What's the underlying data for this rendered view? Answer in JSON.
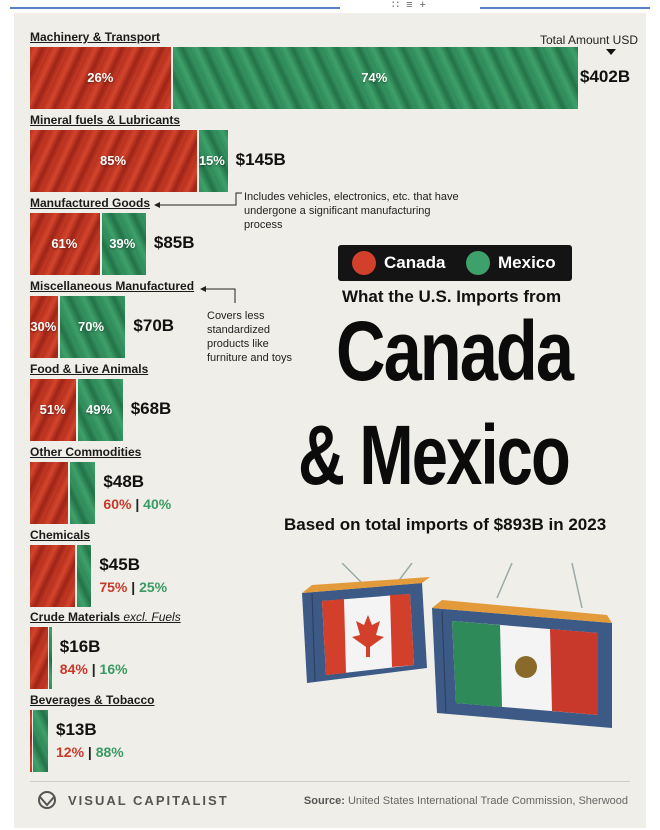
{
  "chart_data": {
    "type": "bar",
    "title": "What the U.S. Imports from Canada & Mexico",
    "title_lead": "What the U.S. Imports from",
    "title_line1": "Canada",
    "title_line2": "& Mexico",
    "subtitle": "Based on total imports of $893B in 2023",
    "total_label": "Total Amount USD",
    "legend": [
      {
        "name": "Canada",
        "color": "#d2402c"
      },
      {
        "name": "Mexico",
        "color": "#3ea06a"
      }
    ],
    "categories": [
      {
        "label": "Machinery & Transport",
        "italic": "",
        "total": 402,
        "total_label": "$402B",
        "canada": 26,
        "mexico": 74,
        "canada_label": "26%",
        "mexico_label": "74%"
      },
      {
        "label": "Mineral fuels & Lubricants",
        "italic": "",
        "total": 145,
        "total_label": "$145B",
        "canada": 85,
        "mexico": 15,
        "canada_label": "85%",
        "mexico_label": "15%"
      },
      {
        "label": "Manufactured Goods",
        "italic": "",
        "total": 85,
        "total_label": "$85B",
        "canada": 61,
        "mexico": 39,
        "canada_label": "61%",
        "mexico_label": "39%"
      },
      {
        "label": "Miscellaneous Manufactured",
        "italic": "",
        "total": 70,
        "total_label": "$70B",
        "canada": 30,
        "mexico": 70,
        "canada_label": "30%",
        "mexico_label": "70%"
      },
      {
        "label": "Food & Live Animals",
        "italic": "",
        "total": 68,
        "total_label": "$68B",
        "canada": 51,
        "mexico": 49,
        "canada_label": "51%",
        "mexico_label": "49%"
      },
      {
        "label": "Other Commodities",
        "italic": "",
        "total": 48,
        "total_label": "$48B",
        "canada": 60,
        "mexico": 40,
        "canada_label": "60%",
        "mexico_label": "40%"
      },
      {
        "label": "Chemicals",
        "italic": "",
        "total": 45,
        "total_label": "$45B",
        "canada": 75,
        "mexico": 25,
        "canada_label": "75%",
        "mexico_label": "25%"
      },
      {
        "label": "Crude Materials",
        "italic": "excl. Fuels",
        "total": 16,
        "total_label": "$16B",
        "canada": 84,
        "mexico": 16,
        "canada_label": "84%",
        "mexico_label": "16%"
      },
      {
        "label": "Beverages & Tobacco",
        "italic": "",
        "total": 13,
        "total_label": "$13B",
        "canada": 12,
        "mexico": 88,
        "canada_label": "12%",
        "mexico_label": "88%"
      }
    ],
    "annotations": {
      "manufactured": "Includes vehicles, electronics, etc. that have undergone a significant manufacturing process",
      "misc": "Covers less standardized products like furniture and toys"
    }
  },
  "footer": {
    "brand": "VISUAL CAPITALIST",
    "source_label": "Source:",
    "source_text": "United States International Trade Commission, Sherwood"
  },
  "header_glyphs": "∷  ≡ +",
  "colors": {
    "canada": "#d2402c",
    "mexico": "#3ea06a",
    "background": "#efeee8"
  }
}
